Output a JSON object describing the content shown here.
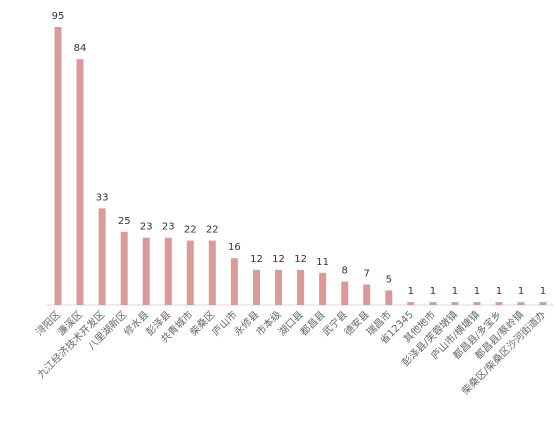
{
  "chart_data": {
    "type": "bar",
    "categories": [
      "浔阳区",
      "濂溪区",
      "九江经济技术开发区",
      "八里湖新区",
      "修水县",
      "彭泽县",
      "共青城市",
      "柴桑区",
      "庐山市",
      "永修县",
      "市本级",
      "湖口县",
      "都昌县",
      "武宁县",
      "德安县",
      "瑞昌市",
      "省12345",
      "其他地市",
      "彭泽县/芙蓉墩镇",
      "庐山市/横塘镇",
      "都昌县/多宝乡",
      "都昌县/蔡岭镇",
      "柴桑区/柴桑区沙河街道办"
    ],
    "values": [
      95,
      84,
      33,
      25,
      23,
      23,
      22,
      22,
      16,
      12,
      12,
      12,
      11,
      8,
      7,
      5,
      1,
      1,
      1,
      1,
      1,
      1,
      1
    ],
    "colors": {
      "bar": "#d99a9a",
      "axis": "#d9d9d9"
    },
    "ylim": [
      0,
      95
    ],
    "grid": false,
    "legend": "none"
  }
}
